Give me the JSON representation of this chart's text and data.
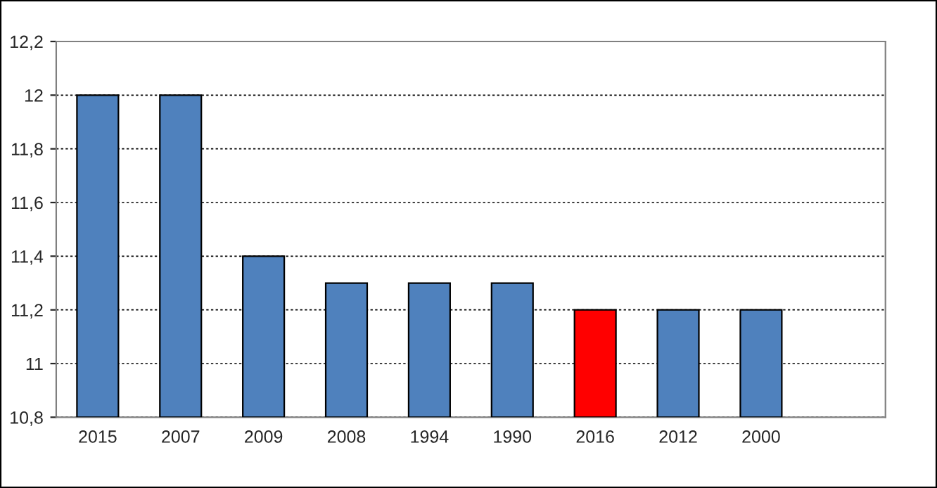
{
  "chart_data": {
    "type": "bar",
    "categories": [
      "2015",
      "2007",
      "2009",
      "2008",
      "1994",
      "1990",
      "2016",
      "2012",
      "2000",
      null
    ],
    "values": [
      12,
      12,
      11.4,
      11.3,
      11.3,
      11.3,
      11.2,
      11.2,
      11.2,
      null
    ],
    "colors": [
      "#4f81bd",
      "#4f81bd",
      "#4f81bd",
      "#4f81bd",
      "#4f81bd",
      "#4f81bd",
      "#ff0000",
      "#4f81bd",
      "#4f81bd",
      "#4f81bd"
    ],
    "ylim": [
      10.8,
      12.2
    ],
    "yticks": [
      {
        "value": 10.8,
        "label": "10,8"
      },
      11,
      {
        "value": 11.2,
        "label": "11,2"
      },
      {
        "value": 11.4,
        "label": "11,4"
      },
      {
        "value": 11.6,
        "label": "11,6"
      },
      {
        "value": 11.8,
        "label": "11,8"
      },
      12,
      {
        "value": 12.2,
        "label": "12,2"
      }
    ],
    "grid": "y",
    "legend": false
  }
}
